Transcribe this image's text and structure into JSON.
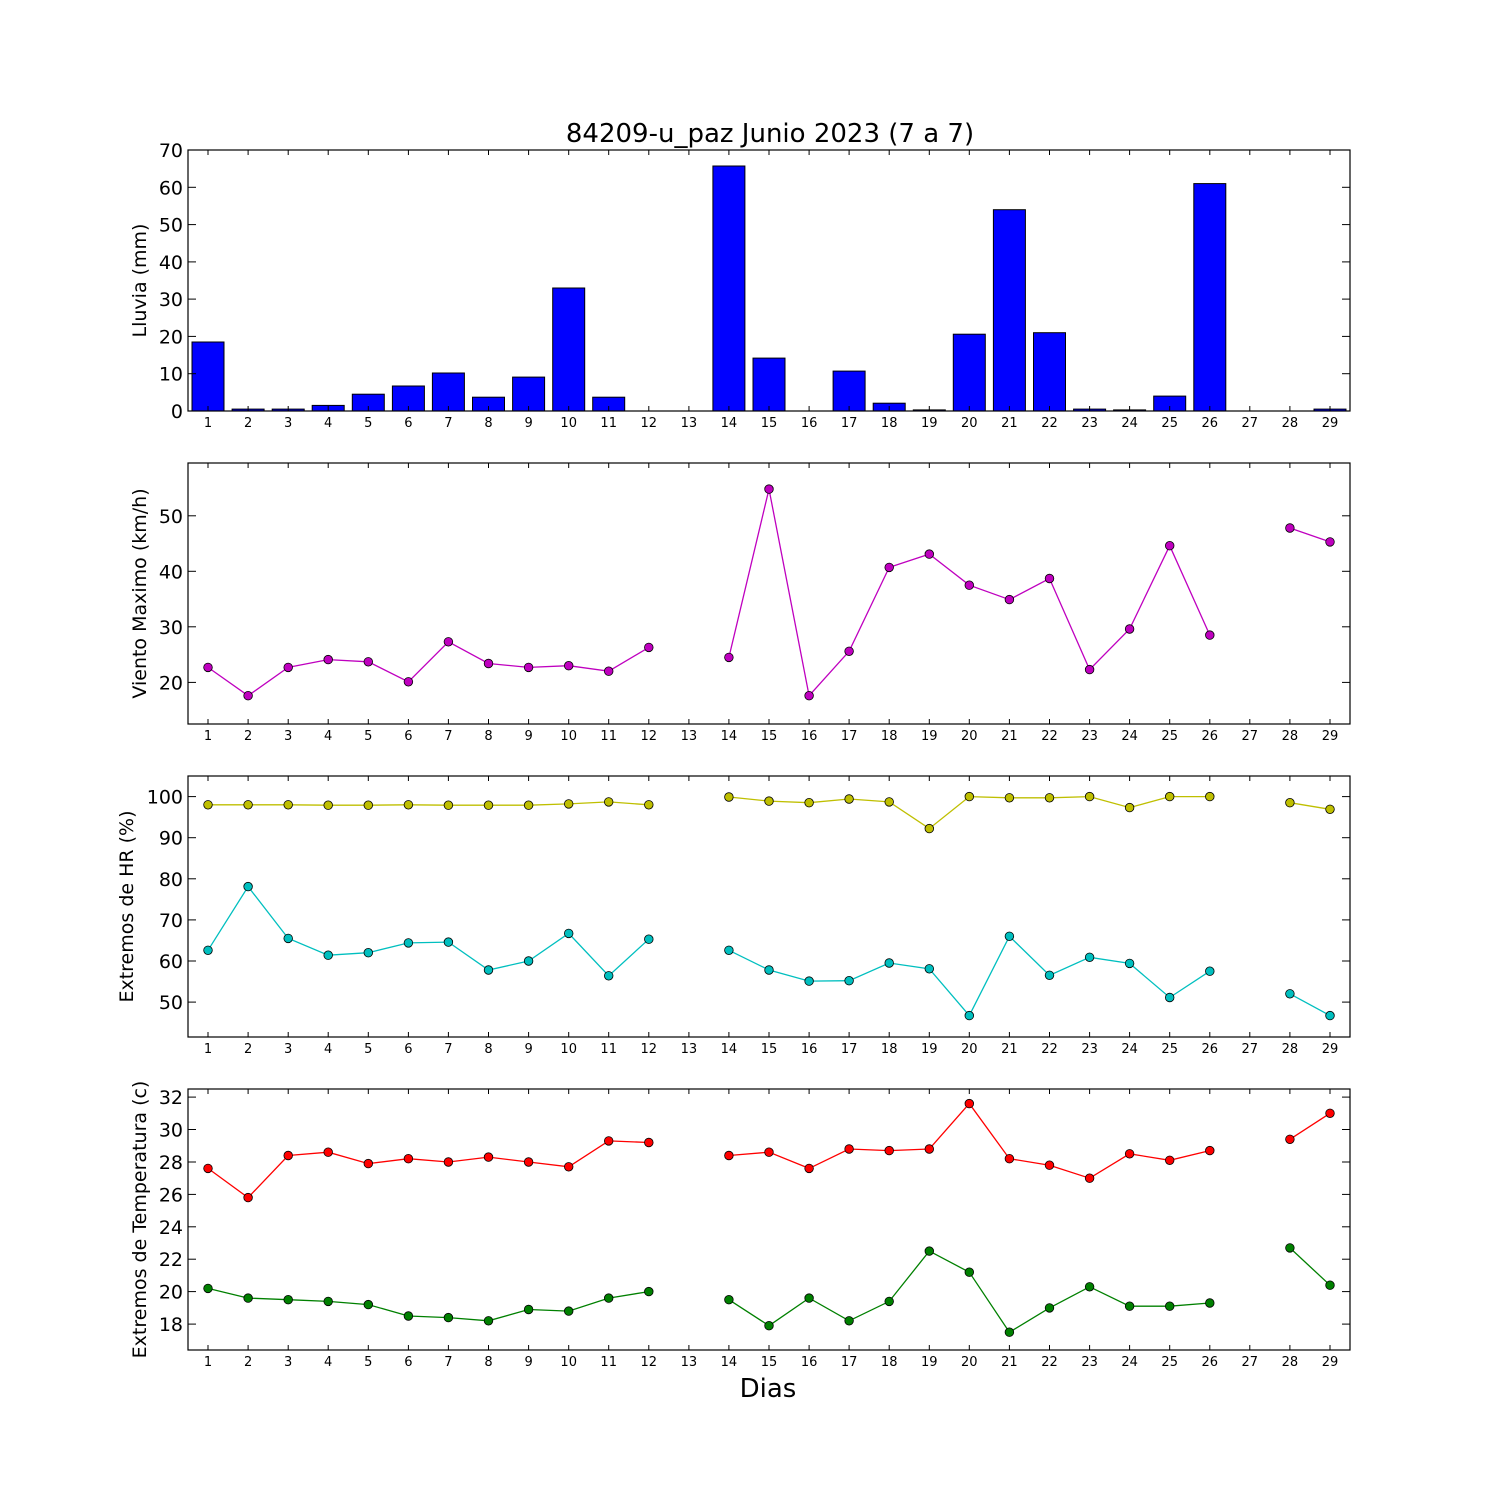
{
  "title": "84209-u_paz Junio 2023  (7 a 7)",
  "xlabel": "Dias",
  "days": [
    1,
    2,
    3,
    4,
    5,
    6,
    7,
    8,
    9,
    10,
    11,
    12,
    13,
    14,
    15,
    16,
    17,
    18,
    19,
    20,
    21,
    22,
    23,
    24,
    25,
    26,
    27,
    28,
    29
  ],
  "chart_data": [
    {
      "type": "bar",
      "ylabel": "Lluvia (mm)",
      "ylim": [
        0,
        70
      ],
      "yticks": [
        0,
        10,
        20,
        30,
        40,
        50,
        60,
        70
      ],
      "series": [
        {
          "color": "#0000ff",
          "values": [
            18.5,
            0.5,
            0.5,
            1.5,
            4.5,
            6.7,
            10.2,
            3.7,
            9.1,
            33,
            3.7,
            0,
            0,
            65.7,
            14.2,
            0,
            10.7,
            2.1,
            0.3,
            20.6,
            54,
            21,
            0.5,
            0.3,
            4,
            61,
            0,
            0,
            0.5
          ]
        }
      ]
    },
    {
      "type": "line",
      "ylabel": "Viento Maximo (km/h)",
      "ylim": [
        12.5,
        59.5
      ],
      "yticks": [
        20,
        30,
        40,
        50
      ],
      "series": [
        {
          "color": "#bf00bf",
          "values": [
            22.7,
            17.6,
            22.7,
            24.1,
            23.7,
            20.1,
            27.3,
            23.4,
            22.7,
            23.0,
            22.0,
            26.3,
            null,
            24.5,
            54.8,
            17.6,
            25.6,
            40.7,
            43.1,
            37.5,
            34.9,
            38.7,
            22.3,
            29.6,
            44.6,
            28.5,
            null,
            47.8,
            45.3
          ]
        }
      ]
    },
    {
      "type": "line",
      "ylabel": "Extremos de HR (%)",
      "ylim": [
        41.5,
        105
      ],
      "yticks": [
        50,
        60,
        70,
        80,
        90,
        100
      ],
      "series": [
        {
          "color": "#bfbf00",
          "values": [
            98,
            98,
            98,
            97.9,
            97.9,
            98,
            97.9,
            97.9,
            97.9,
            98.2,
            98.7,
            98,
            null,
            99.9,
            98.9,
            98.5,
            99.4,
            98.7,
            92.2,
            100,
            99.7,
            99.7,
            100,
            97.3,
            100,
            100,
            null,
            98.5,
            96.9
          ]
        },
        {
          "color": "#00bfbf",
          "values": [
            62.6,
            78.1,
            65.5,
            61.4,
            62,
            64.4,
            64.6,
            57.8,
            60,
            66.7,
            56.4,
            65.3,
            null,
            62.6,
            57.8,
            55.1,
            55.2,
            59.5,
            58.1,
            46.7,
            66,
            56.5,
            60.9,
            59.4,
            51.1,
            57.5,
            null,
            52,
            46.7
          ]
        }
      ]
    },
    {
      "type": "line",
      "ylabel": "Extremos de Temperatura (c)",
      "ylim": [
        16.4,
        32.5
      ],
      "yticks": [
        18,
        20,
        22,
        24,
        26,
        28,
        30,
        32
      ],
      "series": [
        {
          "color": "#ff0000",
          "values": [
            27.6,
            25.8,
            28.4,
            28.6,
            27.9,
            28.2,
            28.0,
            28.3,
            28.0,
            27.7,
            29.3,
            29.2,
            null,
            28.4,
            28.6,
            27.6,
            28.8,
            28.7,
            28.8,
            31.6,
            28.2,
            27.8,
            27.0,
            28.5,
            28.1,
            28.7,
            null,
            29.4,
            31.0
          ]
        },
        {
          "color": "#008000",
          "values": [
            20.2,
            19.6,
            19.5,
            19.4,
            19.2,
            18.5,
            18.4,
            18.2,
            18.9,
            18.8,
            19.6,
            20.0,
            null,
            19.5,
            17.9,
            19.6,
            18.2,
            19.4,
            22.5,
            21.2,
            17.5,
            19.0,
            20.3,
            19.1,
            19.1,
            19.3,
            null,
            22.7,
            20.4
          ]
        }
      ]
    }
  ]
}
